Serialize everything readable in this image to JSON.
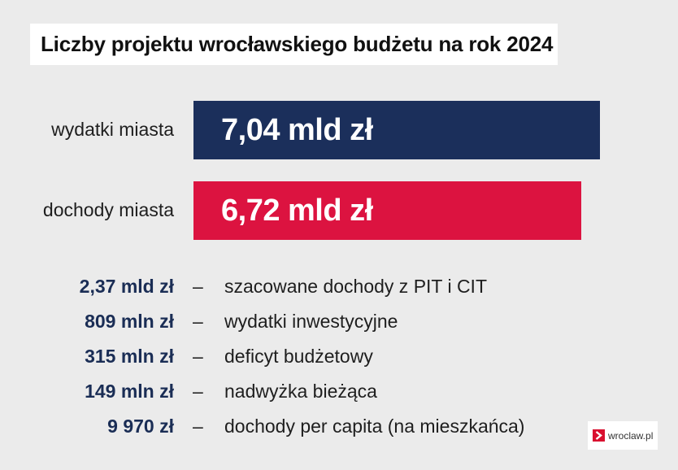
{
  "title": "Liczby projektu wrocławskiego budżetu na rok 2024",
  "chart_data": {
    "type": "bar",
    "orientation": "horizontal",
    "title": "Liczby projektu wrocławskiego budżetu na rok 2024",
    "categories": [
      "wydatki miasta",
      "dochody miasta"
    ],
    "values": [
      7.04,
      6.72
    ],
    "value_labels": [
      "7,04 mld zł",
      "6,72 mld zł"
    ],
    "unit": "mld zł",
    "colors": [
      "#1b2f5b",
      "#dc1340"
    ],
    "xlim": [
      0,
      7.04
    ],
    "grid": false,
    "legend": "none"
  },
  "stats": [
    {
      "value": "2,37 mld zł",
      "dash": "–",
      "description": "szacowane dochody z PIT i CIT"
    },
    {
      "value": "809 mln zł",
      "dash": "–",
      "description": "wydatki inwestycyjne"
    },
    {
      "value": "315 mln zł",
      "dash": "–",
      "description": "deficyt budżetowy"
    },
    {
      "value": "149 mln zł",
      "dash": "–",
      "description": "nadwyżka bieżąca"
    },
    {
      "value": "9 970 zł",
      "dash": "–",
      "description": "dochody per capita (na mieszkańca)"
    }
  ],
  "logo": {
    "text": "wroclaw.pl",
    "icon": "chevron-right-icon",
    "color": "#d9102f"
  },
  "colors": {
    "background": "#ebebeb",
    "stat_value": "#1a2d55"
  }
}
